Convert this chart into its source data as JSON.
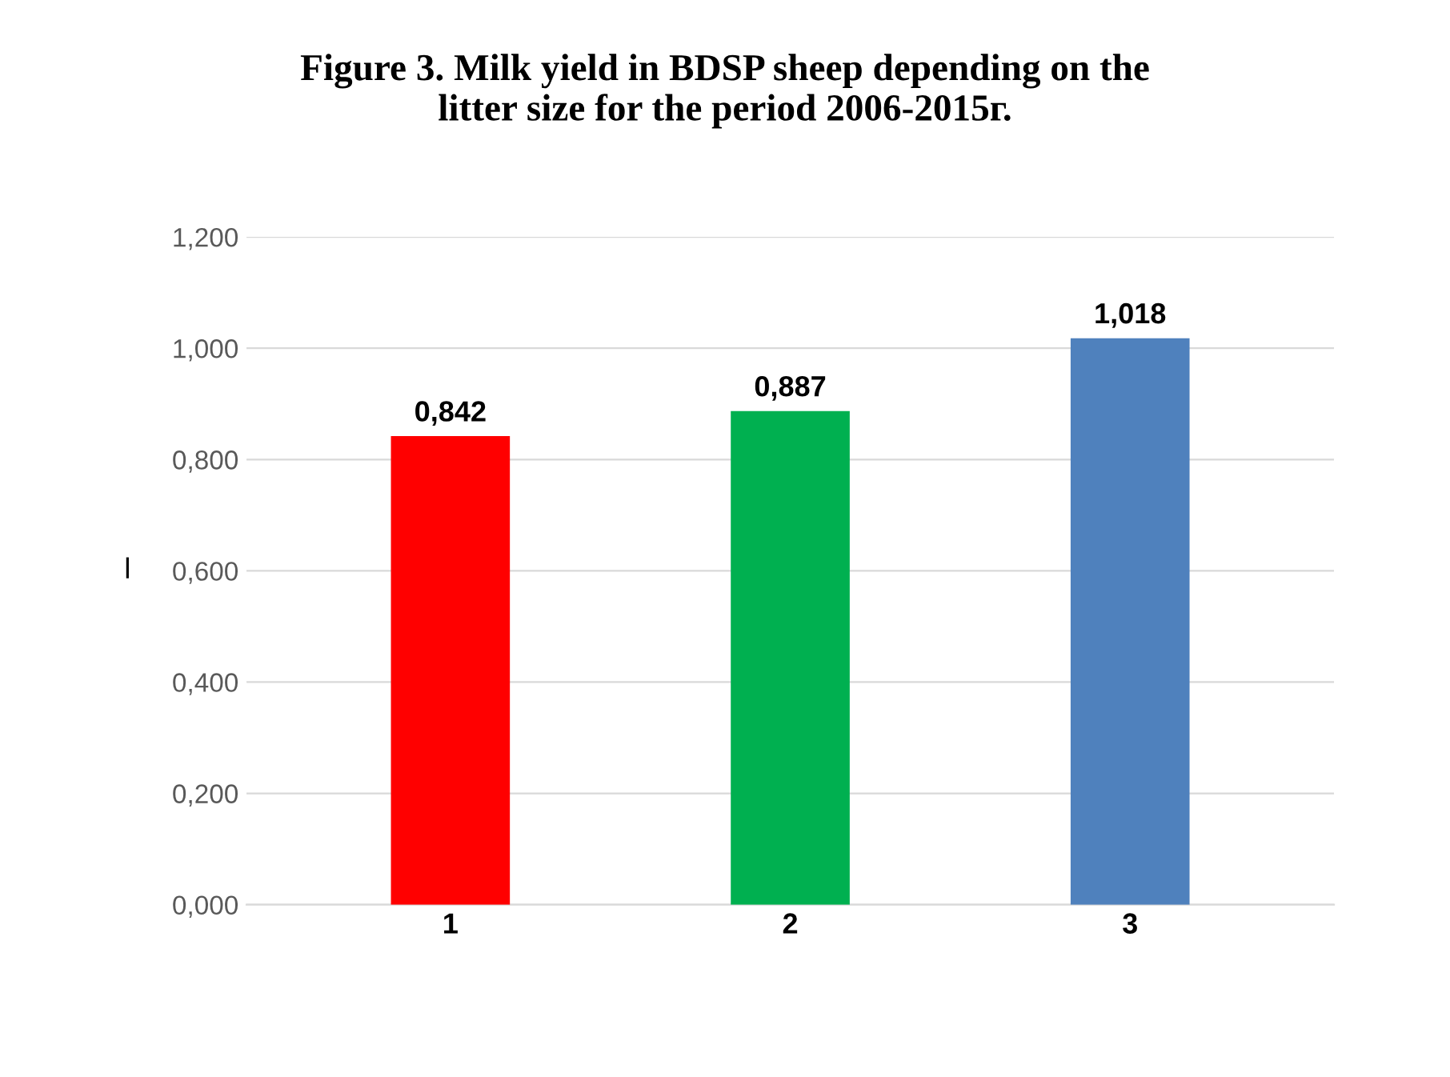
{
  "chart_data": {
    "type": "bar",
    "title": "Figure 3. Milk yield in BDSP sheep depending on the\nlitter size for the period 2006-2015г.",
    "ylabel": "l",
    "categories": [
      "1",
      "2",
      "3"
    ],
    "values": [
      0.842,
      0.887,
      1.018
    ],
    "colors": [
      "#ff0000",
      "#00b050",
      "#4f81bd"
    ],
    "value_labels": [
      "0,842",
      "0,887",
      "1,018"
    ],
    "ylim": [
      0,
      1.2
    ],
    "yticks": [
      {
        "value": 0,
        "label": "0,000"
      },
      {
        "value": 0.2,
        "label": "0,200"
      },
      {
        "value": 0.4,
        "label": "0,400"
      },
      {
        "value": 0.6,
        "label": "0,600"
      },
      {
        "value": 0.8,
        "label": "0,800"
      },
      {
        "value": 1.0,
        "label": "1,000"
      },
      {
        "value": 1.2,
        "label": "1,200"
      }
    ],
    "grid": "y"
  }
}
